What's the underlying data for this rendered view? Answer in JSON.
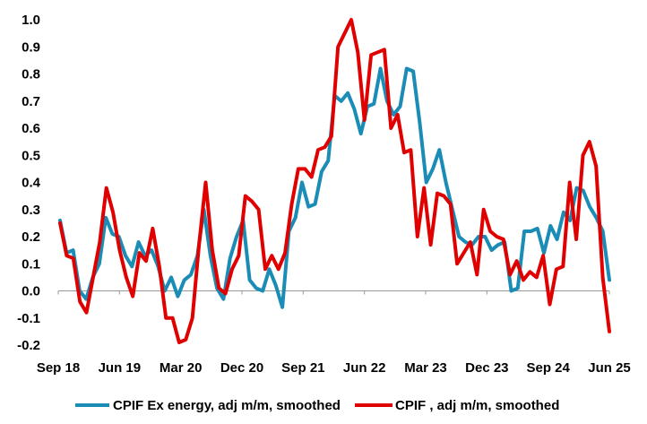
{
  "chart_data": {
    "type": "line",
    "title": "",
    "xlabel": "",
    "ylabel": "",
    "ylim": [
      -0.2,
      1.0
    ],
    "yticks": [
      "1.0",
      "0.9",
      "0.8",
      "0.7",
      "0.6",
      "0.5",
      "0.4",
      "0.3",
      "0.2",
      "0.1",
      "0.0",
      "-0.1",
      "-0.2"
    ],
    "grid": false,
    "legend_position": "bottom",
    "x_tick_labels": [
      "Sep 18",
      "Jun 19",
      "Mar 20",
      "Dec 20",
      "Sep 21",
      "Jun 22",
      "Mar 23",
      "Dec 23",
      "Sep 24",
      "Jun 25"
    ],
    "x_start": "Sep 18",
    "x_end": "Jun 25",
    "series": [
      {
        "name": "CPIF Ex energy, adj m/m, smoothed",
        "color": "#1a8cb5",
        "values": [
          0.26,
          0.14,
          0.15,
          0.0,
          -0.03,
          0.05,
          0.1,
          0.27,
          0.21,
          0.2,
          0.13,
          0.09,
          0.18,
          0.13,
          0.15,
          0.09,
          0.0,
          0.05,
          -0.02,
          0.04,
          0.06,
          0.13,
          0.3,
          0.13,
          0.01,
          -0.03,
          0.12,
          0.2,
          0.26,
          0.04,
          0.01,
          0.0,
          0.08,
          0.02,
          -0.06,
          0.22,
          0.27,
          0.4,
          0.31,
          0.32,
          0.44,
          0.48,
          0.72,
          0.7,
          0.73,
          0.67,
          0.58,
          0.68,
          0.69,
          0.82,
          0.7,
          0.65,
          0.68,
          0.82,
          0.81,
          0.62,
          0.4,
          0.45,
          0.52,
          0.4,
          0.3,
          0.2,
          0.18,
          0.17,
          0.2,
          0.2,
          0.15,
          0.17,
          0.18,
          0.0,
          0.01,
          0.22,
          0.22,
          0.23,
          0.14,
          0.24,
          0.19,
          0.29,
          0.26,
          0.38,
          0.37,
          0.31,
          0.27,
          0.22,
          0.04
        ]
      },
      {
        "name": "CPIF , adj m/m, smoothed",
        "color": "#e00000",
        "values": [
          0.25,
          0.13,
          0.12,
          -0.04,
          -0.08,
          0.05,
          0.18,
          0.38,
          0.29,
          0.15,
          0.05,
          -0.02,
          0.14,
          0.11,
          0.23,
          0.09,
          -0.1,
          -0.1,
          -0.19,
          -0.18,
          -0.1,
          0.17,
          0.4,
          0.15,
          0.01,
          -0.01,
          0.08,
          0.13,
          0.35,
          0.33,
          0.3,
          0.08,
          0.13,
          0.08,
          0.14,
          0.32,
          0.45,
          0.45,
          0.42,
          0.52,
          0.53,
          0.57,
          0.9,
          0.95,
          1.0,
          0.88,
          0.63,
          0.87,
          0.88,
          0.89,
          0.6,
          0.65,
          0.51,
          0.52,
          0.2,
          0.38,
          0.17,
          0.36,
          0.35,
          0.32,
          0.1,
          0.14,
          0.18,
          0.06,
          0.3,
          0.22,
          0.2,
          0.19,
          0.06,
          0.11,
          0.04,
          0.07,
          0.05,
          0.13,
          -0.05,
          0.08,
          0.09,
          0.4,
          0.19,
          0.5,
          0.55,
          0.46,
          0.05,
          -0.15
        ]
      }
    ]
  }
}
